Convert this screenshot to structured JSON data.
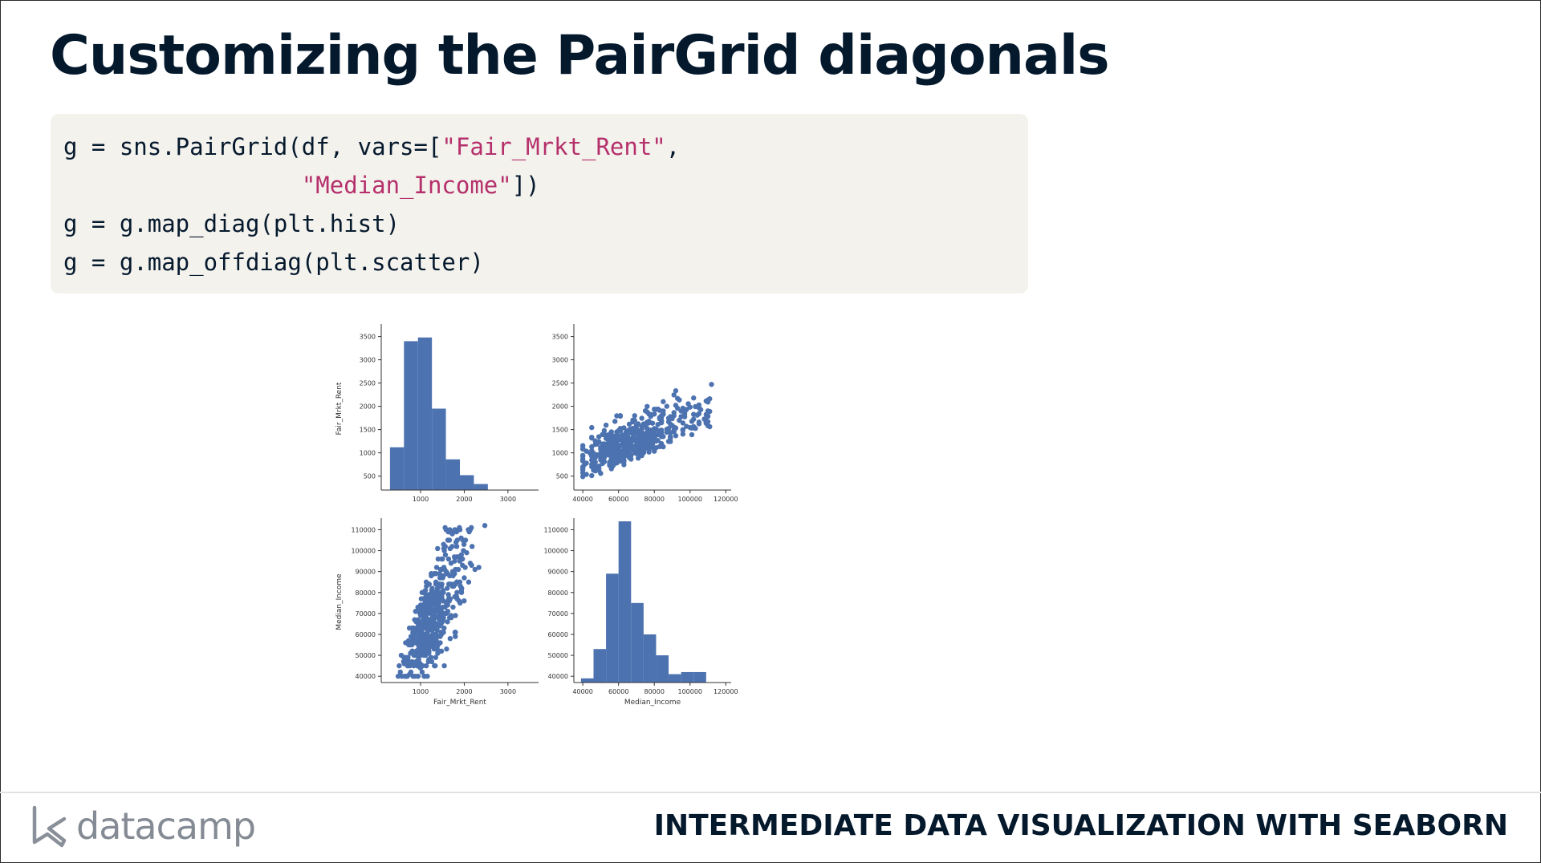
{
  "slide": {
    "title": "Customizing the PairGrid diagonals"
  },
  "code": {
    "lines": [
      [
        {
          "t": "g = sns.PairGrid(df, vars=[",
          "k": "plain"
        },
        {
          "t": "\"Fair_Mrkt_Rent\"",
          "k": "str"
        },
        {
          "t": ",",
          "k": "plain"
        }
      ],
      [
        {
          "t": "                 ",
          "k": "plain"
        },
        {
          "t": "\"Median_Income\"",
          "k": "str"
        },
        {
          "t": "])",
          "k": "plain"
        }
      ],
      [
        {
          "t": "g = g.map_diag(plt.hist)",
          "k": "plain"
        }
      ],
      [
        {
          "t": "g = g.map_offdiag(plt.scatter)",
          "k": "plain"
        }
      ]
    ]
  },
  "chart_data": {
    "type": "pairgrid",
    "color": "#4c72b0",
    "variables": [
      "Fair_Mrkt_Rent",
      "Median_Income"
    ],
    "panels": {
      "rent_hist": {
        "type": "bar",
        "bin_edges": [
          300,
          620,
          940,
          1260,
          1580,
          1900,
          2220,
          2540,
          2860,
          3180,
          3500
        ],
        "heights": [
          1120,
          3400,
          3480,
          1950,
          860,
          520,
          330,
          50,
          20,
          8
        ],
        "x_ticks": [
          1000,
          2000,
          3000
        ],
        "y_ticks": [
          500,
          1000,
          1500,
          2000,
          2500,
          3000,
          3500
        ],
        "xlim": [
          100,
          3700
        ],
        "ylim": [
          200,
          3700
        ],
        "ylabel": "Fair_Mrkt_Rent"
      },
      "income_vs_rent": {
        "type": "scatter",
        "x_ticks": [
          40000,
          60000,
          80000,
          100000,
          120000
        ],
        "y_ticks": [
          500,
          1000,
          1500,
          2000,
          2500,
          3000,
          3500
        ],
        "xlim": [
          35000,
          123000
        ],
        "ylim": [
          200,
          3700
        ]
      },
      "rent_vs_income": {
        "type": "scatter",
        "x_ticks": [
          1000,
          2000,
          3000
        ],
        "y_ticks": [
          40000,
          50000,
          60000,
          70000,
          80000,
          90000,
          100000,
          110000
        ],
        "xlim": [
          100,
          3700
        ],
        "ylim": [
          37000,
          114000
        ],
        "xlabel": "Fair_Mrkt_Rent",
        "ylabel": "Median_Income"
      },
      "income_hist": {
        "type": "bar",
        "bin_edges": [
          39000,
          46000,
          53000,
          60000,
          67000,
          74000,
          81000,
          88000,
          95000,
          102000,
          109000
        ],
        "heights": [
          39000,
          53000,
          89000,
          114000,
          75000,
          60000,
          50000,
          41000,
          42000,
          42000
        ],
        "x_ticks": [
          40000,
          60000,
          80000,
          100000,
          120000
        ],
        "y_ticks": [
          40000,
          50000,
          60000,
          70000,
          80000,
          90000,
          100000,
          110000
        ],
        "xlim": [
          35000,
          123000
        ],
        "ylim": [
          37000,
          114000
        ],
        "xlabel": "Median_Income"
      }
    }
  },
  "footer": {
    "brand": "datacamp",
    "course": "INTERMEDIATE DATA VISUALIZATION WITH SEABORN"
  }
}
